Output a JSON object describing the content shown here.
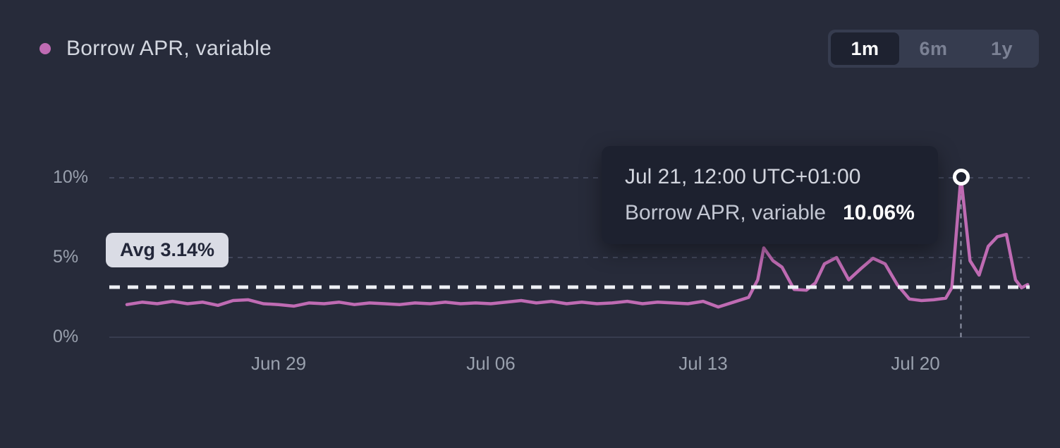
{
  "header": {
    "legend_label": "Borrow APR, variable",
    "legend_color": "#bf6bb3"
  },
  "range_selector": {
    "options": [
      {
        "label": "1m",
        "active": true
      },
      {
        "label": "6m",
        "active": false
      },
      {
        "label": "1y",
        "active": false
      }
    ]
  },
  "avg_badge": {
    "label": "Avg 3.14%"
  },
  "tooltip": {
    "timestamp": "Jul 21, 12:00 UTC+01:00",
    "series_label": "Borrow APR, variable",
    "value": "10.06%"
  },
  "chart_data": {
    "type": "line",
    "title": "Borrow APR, variable",
    "x_unit": "day_offset",
    "ylim": [
      0,
      11
    ],
    "grid": "dashed-horizontal",
    "average": 3.14,
    "average_label": "Avg 3.14%",
    "y_ticks": [
      {
        "value": 0,
        "label": "0%"
      },
      {
        "value": 5,
        "label": "5%"
      },
      {
        "value": 10,
        "label": "10%"
      }
    ],
    "x_ticks": [
      {
        "day": 5,
        "label": "Jun 29"
      },
      {
        "day": 12,
        "label": "Jul 06"
      },
      {
        "day": 19,
        "label": "Jul 13"
      },
      {
        "day": 26,
        "label": "Jul 20"
      }
    ],
    "highlight": {
      "day": 27.5,
      "value": 10.06,
      "timestamp": "Jul 21, 12:00 UTC+01:00"
    },
    "series": [
      {
        "name": "Borrow APR, variable",
        "color": "#bf6bb3",
        "points": [
          [
            0,
            2.05
          ],
          [
            0.5,
            2.2
          ],
          [
            1,
            2.1
          ],
          [
            1.5,
            2.25
          ],
          [
            2,
            2.1
          ],
          [
            2.5,
            2.2
          ],
          [
            3,
            2.0
          ],
          [
            3.5,
            2.3
          ],
          [
            4,
            2.35
          ],
          [
            4.5,
            2.1
          ],
          [
            5,
            2.05
          ],
          [
            5.5,
            1.95
          ],
          [
            6,
            2.15
          ],
          [
            6.5,
            2.1
          ],
          [
            7,
            2.2
          ],
          [
            7.5,
            2.05
          ],
          [
            8,
            2.15
          ],
          [
            8.5,
            2.1
          ],
          [
            9,
            2.05
          ],
          [
            9.5,
            2.15
          ],
          [
            10,
            2.1
          ],
          [
            10.5,
            2.2
          ],
          [
            11,
            2.1
          ],
          [
            11.5,
            2.15
          ],
          [
            12,
            2.1
          ],
          [
            12.5,
            2.2
          ],
          [
            13,
            2.3
          ],
          [
            13.5,
            2.15
          ],
          [
            14,
            2.25
          ],
          [
            14.5,
            2.1
          ],
          [
            15,
            2.2
          ],
          [
            15.5,
            2.1
          ],
          [
            16,
            2.15
          ],
          [
            16.5,
            2.25
          ],
          [
            17,
            2.1
          ],
          [
            17.5,
            2.2
          ],
          [
            18,
            2.15
          ],
          [
            18.5,
            2.1
          ],
          [
            19,
            2.25
          ],
          [
            19.5,
            1.9
          ],
          [
            20,
            2.2
          ],
          [
            20.5,
            2.5
          ],
          [
            20.8,
            3.6
          ],
          [
            21,
            5.6
          ],
          [
            21.3,
            4.8
          ],
          [
            21.6,
            4.4
          ],
          [
            22,
            3.0
          ],
          [
            22.4,
            2.95
          ],
          [
            22.7,
            3.4
          ],
          [
            23,
            4.6
          ],
          [
            23.4,
            5.0
          ],
          [
            23.8,
            3.6
          ],
          [
            24.2,
            4.3
          ],
          [
            24.6,
            4.95
          ],
          [
            25,
            4.6
          ],
          [
            25.4,
            3.3
          ],
          [
            25.8,
            2.4
          ],
          [
            26.2,
            2.3
          ],
          [
            26.6,
            2.35
          ],
          [
            27,
            2.45
          ],
          [
            27.2,
            3.1
          ],
          [
            27.5,
            10.06
          ],
          [
            27.8,
            4.8
          ],
          [
            28.1,
            3.9
          ],
          [
            28.4,
            5.7
          ],
          [
            28.7,
            6.3
          ],
          [
            29,
            6.45
          ],
          [
            29.3,
            3.6
          ],
          [
            29.5,
            3.1
          ],
          [
            29.7,
            3.3
          ]
        ]
      }
    ]
  }
}
